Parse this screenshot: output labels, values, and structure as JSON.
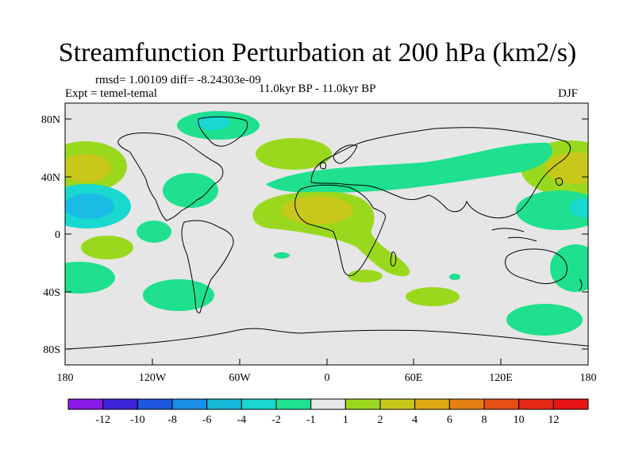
{
  "title": "Streamfunction Perturbation at 200 hPa (km2/s)",
  "stats": "rmsd= 1.00109 diff= -8.24303e-09",
  "experiment": "Expt = temel-temal",
  "period": "11.0kyr BP - 11.0kyr BP",
  "season": "DJF",
  "y_ticks": [
    "80N",
    "40N",
    "0",
    "40S",
    "80S"
  ],
  "x_ticks": [
    "180",
    "120W",
    "60W",
    "0",
    "60E",
    "120E",
    "180"
  ],
  "colorbar": {
    "labels": [
      "-12",
      "-10",
      "-8",
      "-6",
      "-4",
      "-2",
      "-1",
      "1",
      "2",
      "4",
      "6",
      "8",
      "10",
      "12"
    ],
    "colors": [
      "#8a1ae6",
      "#3c22d8",
      "#1e58e0",
      "#1a8ee6",
      "#18b8d8",
      "#18d8d0",
      "#1ee08e",
      "#e6e6e6",
      "#9ad81e",
      "#c8c81a",
      "#deaa14",
      "#e67e14",
      "#e65014",
      "#e62814",
      "#e61414"
    ]
  },
  "colors": {
    "background": "#e6e6e6",
    "neg_light": "#1ee08e",
    "neg_mid": "#18d8d0",
    "neg_strong": "#1abce6",
    "pos_light": "#9ad81e",
    "pos_mid": "#c8c81a"
  }
}
